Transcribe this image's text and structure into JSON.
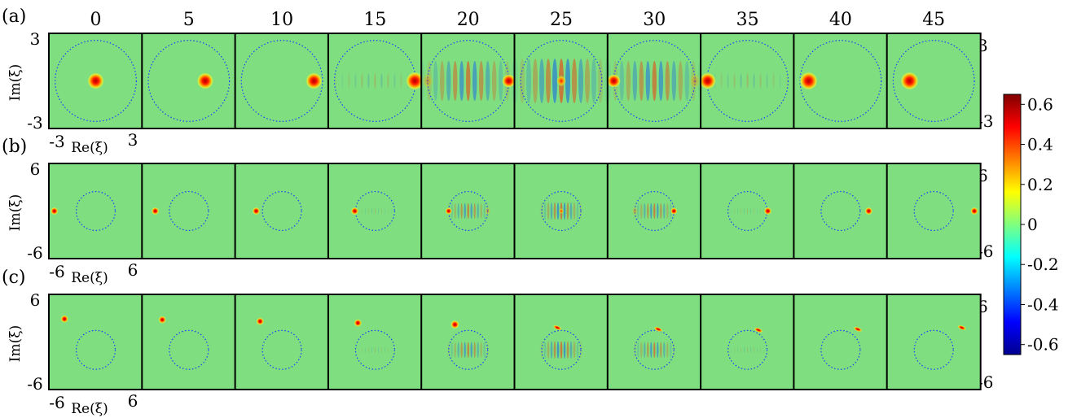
{
  "chart_data": {
    "type": "heatmap",
    "time_labels": [
      "0",
      "5",
      "10",
      "15",
      "20",
      "25",
      "30",
      "35",
      "40",
      "45"
    ],
    "colorbar": {
      "min": -0.65,
      "max": 0.65,
      "ticks": [
        "0.6",
        "0.4",
        "0.2",
        "0",
        "-0.2",
        "-0.4",
        "-0.6"
      ],
      "tick_values": [
        0.6,
        0.4,
        0.2,
        0,
        -0.2,
        -0.4,
        -0.6
      ],
      "colormap": "jet",
      "colors": [
        "#00008f",
        "#0000ff",
        "#00ffff",
        "#7fff7f",
        "#ffff00",
        "#ff0000",
        "#800000"
      ],
      "background": "#7fde7f"
    },
    "rows": [
      {
        "label": "(a)",
        "xlabel": "Re(ξ)",
        "ylabel": "Im(ξ)",
        "x_min_label": "-3",
        "x_max_label": "3",
        "y_min_label": "-3",
        "y_max_label": "3",
        "right_max_label": "3",
        "right_min_label": "-3",
        "range": [
          -3,
          3
        ],
        "circle_radius": 2.6,
        "blob_re": [
          0,
          1.05,
          2.05,
          2.55,
          2.6,
          0,
          -2.6,
          -2.55,
          -2.05,
          -1.55
        ],
        "blob_im": [
          0,
          0,
          0,
          0,
          0,
          0,
          0,
          0,
          0,
          0
        ],
        "blob_size": [
          0.55,
          0.55,
          0.55,
          0.6,
          0.45,
          0.3,
          0.45,
          0.55,
          0.6,
          0.6
        ]
      },
      {
        "label": "(b)",
        "xlabel": "Re(ξ)",
        "ylabel": "Im(ξ)",
        "x_min_label": "-6",
        "x_max_label": "6",
        "y_min_label": "-6",
        "y_max_label": "6",
        "right_max_label": "6",
        "right_min_label": "-6",
        "range": [
          -6,
          6
        ],
        "circle_radius": 2.5,
        "blob_re": [
          -5.3,
          -4.3,
          -3.3,
          -2.6,
          -2.5,
          0,
          2.5,
          2.6,
          3.6,
          5.2
        ],
        "blob_im": [
          0,
          0,
          0,
          0,
          0,
          0,
          0,
          0,
          0,
          0
        ],
        "blob_size": [
          0.5,
          0.5,
          0.5,
          0.5,
          0.45,
          0.3,
          0.45,
          0.5,
          0.5,
          0.5
        ]
      },
      {
        "label": "(c)",
        "xlabel": "Re(ξ)",
        "ylabel": "Im(ξ)",
        "x_min_label": "-6",
        "x_max_label": "6",
        "y_min_label": "-6",
        "y_max_label": "6",
        "right_max_label": "6",
        "right_min_label": "-6",
        "range": [
          -6,
          6
        ],
        "circle_radius": 2.5,
        "circle_center_im": -1.0,
        "blob_re": [
          -4.0,
          -3.4,
          -2.8,
          -2.2,
          -1.7,
          -0.5,
          0.5,
          1.4,
          2.2,
          3.6
        ],
        "blob_im": [
          2.9,
          2.8,
          2.6,
          2.4,
          2.2,
          1.8,
          1.6,
          1.5,
          1.6,
          1.8
        ],
        "blob_size": [
          0.5,
          0.5,
          0.5,
          0.5,
          0.55,
          0.6,
          0.6,
          0.6,
          0.6,
          0.6
        ]
      }
    ]
  }
}
